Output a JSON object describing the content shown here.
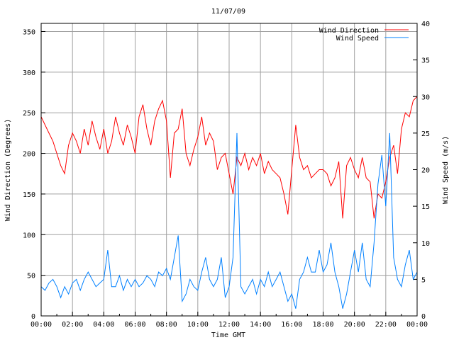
{
  "chart_data": {
    "type": "line",
    "title": "11/07/09",
    "xlabel": "Time GMT",
    "ylabel": "Wind Direction (Degrees)",
    "y2label": "Wind Speed (m/s)",
    "x_ticks": [
      "00:00",
      "02:00",
      "04:00",
      "06:00",
      "08:00",
      "10:00",
      "12:00",
      "14:00",
      "16:00",
      "18:00",
      "20:00",
      "22:00",
      "00:00"
    ],
    "xlim_hours": [
      0,
      24
    ],
    "ylim": [
      0,
      360
    ],
    "y_ticks": [
      0,
      50,
      100,
      150,
      200,
      250,
      300,
      350
    ],
    "y2lim": [
      0,
      40
    ],
    "y2_ticks": [
      0,
      5,
      10,
      15,
      20,
      25,
      30,
      35,
      40
    ],
    "grid": true,
    "legend": "top-right",
    "x_step_hours": 0.25,
    "series": [
      {
        "name": "Wind Direction",
        "axis": "left",
        "color": "#ff0000",
        "values": [
          245,
          235,
          225,
          215,
          200,
          185,
          175,
          210,
          225,
          215,
          200,
          230,
          210,
          240,
          220,
          205,
          230,
          200,
          215,
          245,
          225,
          210,
          235,
          220,
          200,
          245,
          260,
          230,
          210,
          240,
          255,
          265,
          240,
          170,
          225,
          230,
          255,
          200,
          185,
          205,
          220,
          245,
          210,
          225,
          215,
          180,
          195,
          200,
          175,
          150,
          195,
          185,
          200,
          180,
          195,
          185,
          200,
          175,
          190,
          180,
          175,
          170,
          150,
          125,
          180,
          235,
          195,
          180,
          185,
          170,
          175,
          180,
          180,
          175,
          160,
          170,
          190,
          120,
          185,
          195,
          180,
          170,
          195,
          170,
          165,
          120,
          150,
          145,
          165,
          195,
          210,
          175,
          230,
          250,
          245,
          265,
          270
        ]
      },
      {
        "name": "Wind Speed",
        "axis": "right",
        "color": "#0080ff",
        "values": [
          4,
          3.5,
          4.5,
          5,
          4,
          2.5,
          4,
          3,
          4.5,
          5,
          3.5,
          5,
          6,
          5,
          4,
          4.5,
          5,
          9,
          4,
          4,
          5.5,
          3.5,
          5,
          4,
          5,
          4,
          4.5,
          5.5,
          5,
          4,
          6,
          5.5,
          6.5,
          5,
          8,
          11,
          2,
          3,
          5,
          4,
          3.5,
          6,
          8,
          5,
          4,
          5,
          8,
          2.5,
          4,
          8,
          25,
          4,
          3,
          4,
          5,
          3,
          5,
          4,
          6,
          4,
          5,
          6,
          4,
          2,
          3,
          1,
          5,
          6,
          8,
          6,
          6,
          9,
          6,
          7,
          10,
          6,
          4,
          1,
          3,
          6,
          9,
          6,
          10,
          5,
          4,
          10,
          18,
          22,
          15,
          25,
          8,
          5,
          4,
          7,
          9,
          5,
          6
        ]
      }
    ]
  }
}
